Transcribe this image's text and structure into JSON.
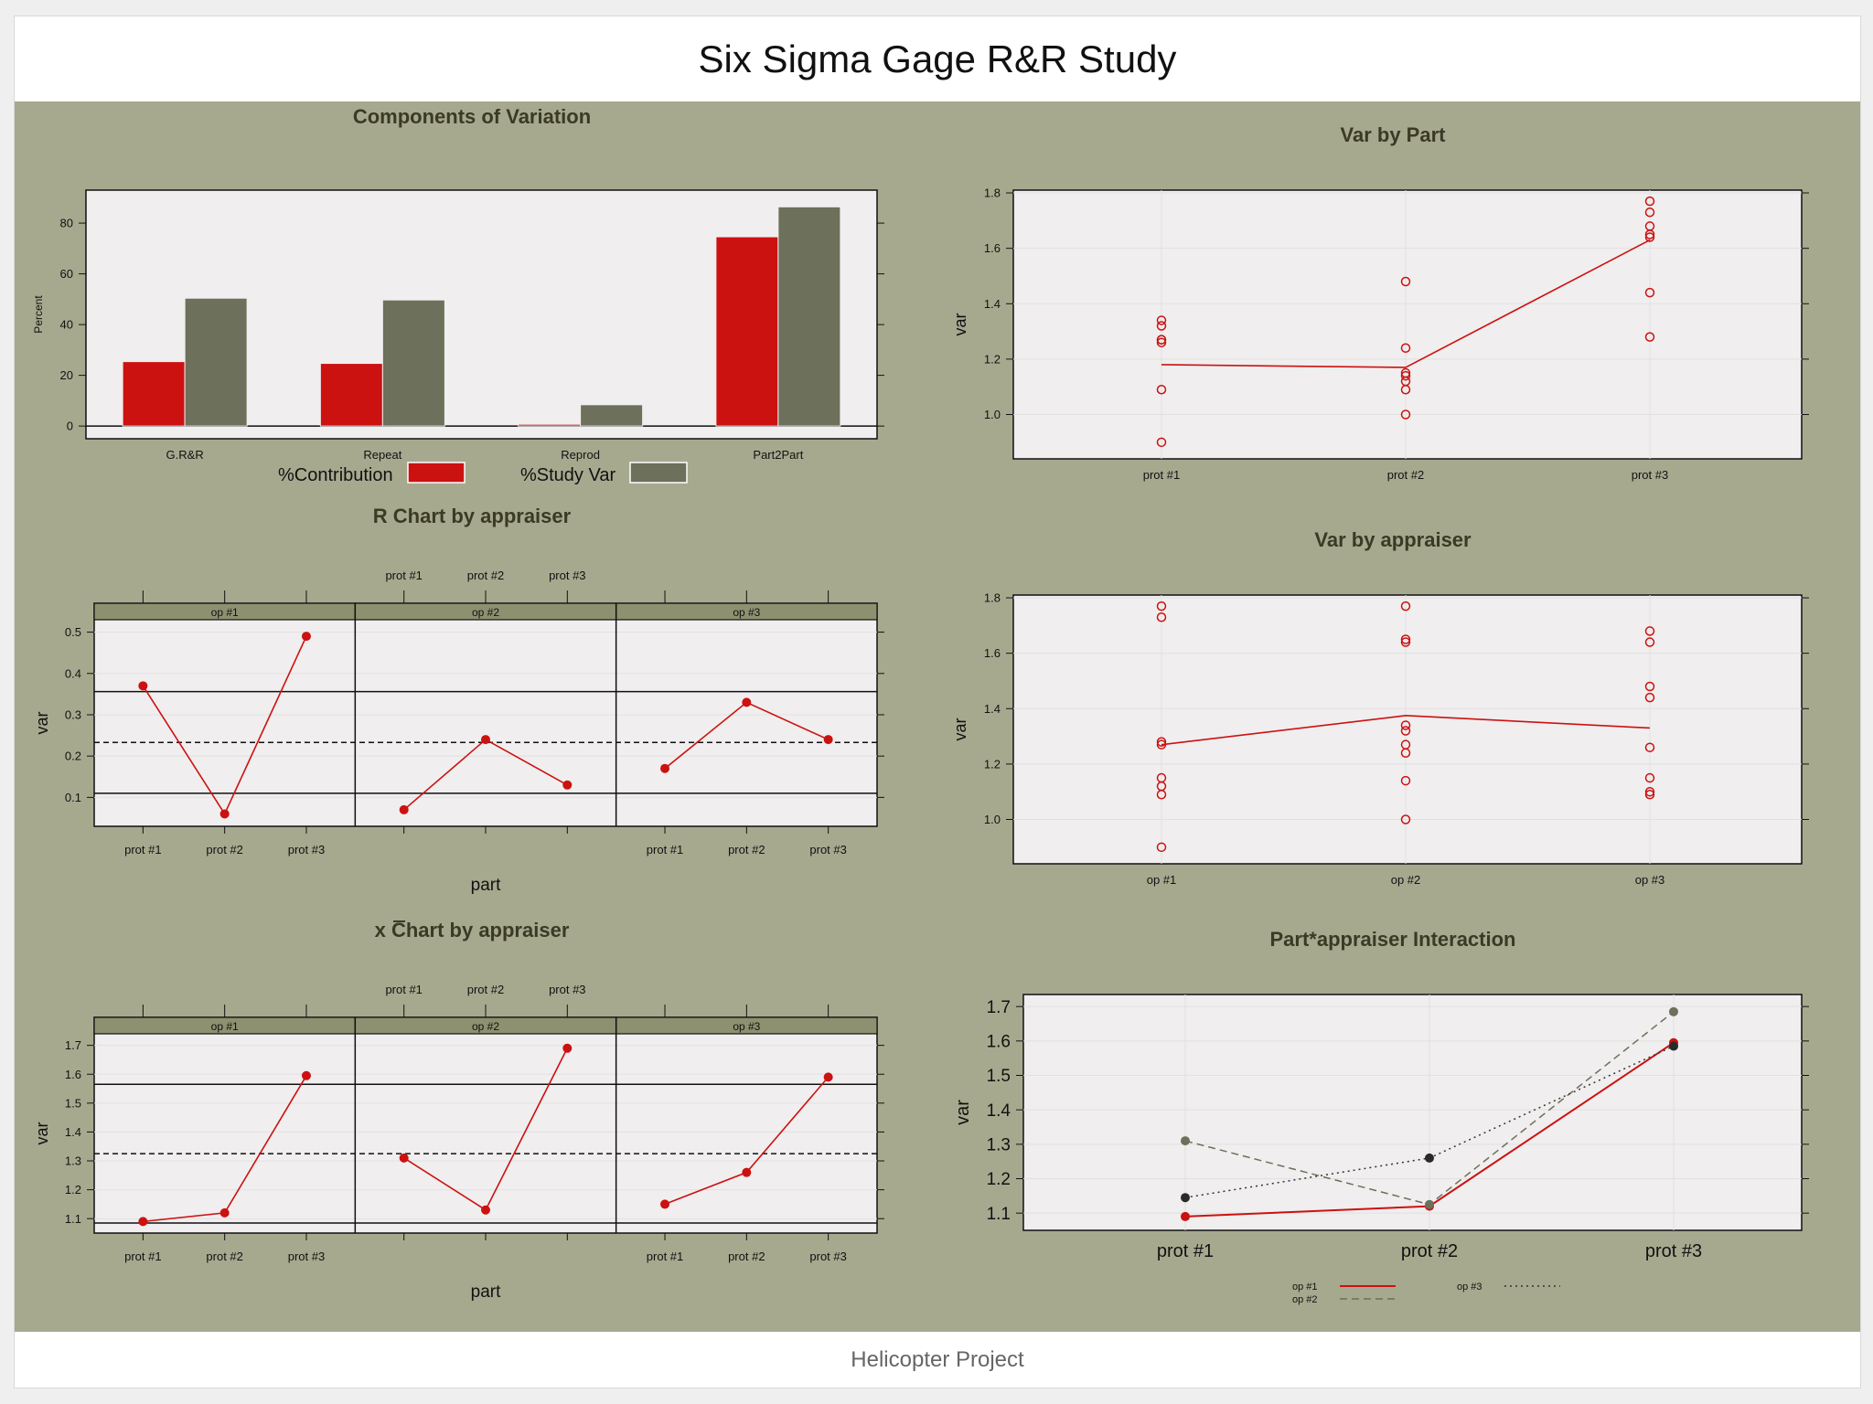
{
  "title": "Six Sigma Gage R&R Study",
  "footer": "Helicopter Project",
  "colors": {
    "red": "#cc1111",
    "olive": "#6d705a",
    "panel_bg": "#a7a98f",
    "plot_bg": "#f0eeee",
    "strip": "#8d9170",
    "title_text": "#3a3a25"
  },
  "chart_data": [
    {
      "id": "components",
      "type": "bar",
      "title": "Components of Variation",
      "ylabel": "Percent",
      "categories": [
        "G.R&R",
        "Repeat",
        "Reprod",
        "Part2Part"
      ],
      "series": [
        {
          "name": "%Contribution",
          "values": [
            25.4,
            24.7,
            0.7,
            74.6
          ]
        },
        {
          "name": "%Study Var",
          "values": [
            50.4,
            49.7,
            8.4,
            86.4
          ]
        }
      ],
      "ylim": [
        -5,
        93
      ],
      "yticks": [
        "0",
        "20",
        "40",
        "60",
        "80"
      ]
    },
    {
      "id": "var-by-part",
      "type": "scatter",
      "title": "Var by Part",
      "ylabel": "var",
      "categories": [
        "prot #1",
        "prot #2",
        "prot #3"
      ],
      "points": [
        [
          0.9,
          1.09,
          1.26,
          1.27,
          1.27,
          1.32,
          1.34
        ],
        [
          1.0,
          1.09,
          1.12,
          1.14,
          1.15,
          1.24,
          1.48
        ],
        [
          1.28,
          1.44,
          1.64,
          1.65,
          1.68,
          1.73,
          1.77
        ]
      ],
      "means": [
        1.18,
        1.17,
        1.63
      ],
      "ylim": [
        0.84,
        1.81
      ],
      "yticks": [
        "1.0",
        "1.2",
        "1.4",
        "1.6",
        "1.8"
      ]
    },
    {
      "id": "r-chart",
      "type": "line",
      "title": "R Chart by appraiser",
      "ylabel": "var",
      "xlabel": "part",
      "panels": [
        "op #1",
        "op #2",
        "op #3"
      ],
      "categories": [
        "prot #1",
        "prot #2",
        "prot #3"
      ],
      "series": [
        {
          "name": "op #1",
          "values": [
            0.37,
            0.06,
            0.49
          ]
        },
        {
          "name": "op #2",
          "values": [
            0.07,
            0.24,
            0.13
          ]
        },
        {
          "name": "op #3",
          "values": [
            0.17,
            0.33,
            0.24
          ]
        }
      ],
      "center": 0.233,
      "limits": [
        0.11,
        0.356
      ],
      "ylim": [
        0.03,
        0.53
      ],
      "yticks": [
        "0.1",
        "0.2",
        "0.3",
        "0.4",
        "0.5"
      ]
    },
    {
      "id": "var-by-appraiser",
      "type": "scatter",
      "title": "Var by appraiser",
      "ylabel": "var",
      "categories": [
        "op #1",
        "op #2",
        "op #3"
      ],
      "points": [
        [
          0.9,
          1.09,
          1.12,
          1.15,
          1.27,
          1.28,
          1.73,
          1.77
        ],
        [
          1.0,
          1.14,
          1.24,
          1.27,
          1.32,
          1.34,
          1.64,
          1.65,
          1.77
        ],
        [
          1.09,
          1.1,
          1.15,
          1.26,
          1.44,
          1.48,
          1.64,
          1.68
        ]
      ],
      "means": [
        1.27,
        1.375,
        1.33
      ],
      "ylim": [
        0.84,
        1.81
      ],
      "yticks": [
        "1.0",
        "1.2",
        "1.4",
        "1.6",
        "1.8"
      ]
    },
    {
      "id": "xbar-chart",
      "type": "line",
      "title": "x Chart by appraiser",
      "title_bar_char": "x",
      "ylabel": "var",
      "xlabel": "part",
      "panels": [
        "op #1",
        "op #2",
        "op #3"
      ],
      "categories": [
        "prot #1",
        "prot #2",
        "prot #3"
      ],
      "series": [
        {
          "name": "op #1",
          "values": [
            1.09,
            1.12,
            1.595
          ]
        },
        {
          "name": "op #2",
          "values": [
            1.31,
            1.13,
            1.69
          ]
        },
        {
          "name": "op #3",
          "values": [
            1.15,
            1.26,
            1.59
          ]
        }
      ],
      "center": 1.325,
      "limits": [
        1.085,
        1.565
      ],
      "ylim": [
        1.05,
        1.74
      ],
      "yticks": [
        "1.1",
        "1.2",
        "1.3",
        "1.4",
        "1.5",
        "1.6",
        "1.7"
      ]
    },
    {
      "id": "interaction",
      "type": "line",
      "title": "Part*appraiser Interaction",
      "ylabel": "var",
      "categories": [
        "prot #1",
        "prot #2",
        "prot #3"
      ],
      "series": [
        {
          "name": "op #1",
          "values": [
            1.09,
            1.12,
            1.595
          ]
        },
        {
          "name": "op #2",
          "values": [
            1.31,
            1.125,
            1.685
          ]
        },
        {
          "name": "op #3",
          "values": [
            1.145,
            1.26,
            1.585
          ]
        }
      ],
      "ylim": [
        1.05,
        1.735
      ],
      "yticks": [
        "1.1",
        "1.2",
        "1.3",
        "1.4",
        "1.5",
        "1.6",
        "1.7"
      ],
      "legend": "bottom"
    }
  ]
}
